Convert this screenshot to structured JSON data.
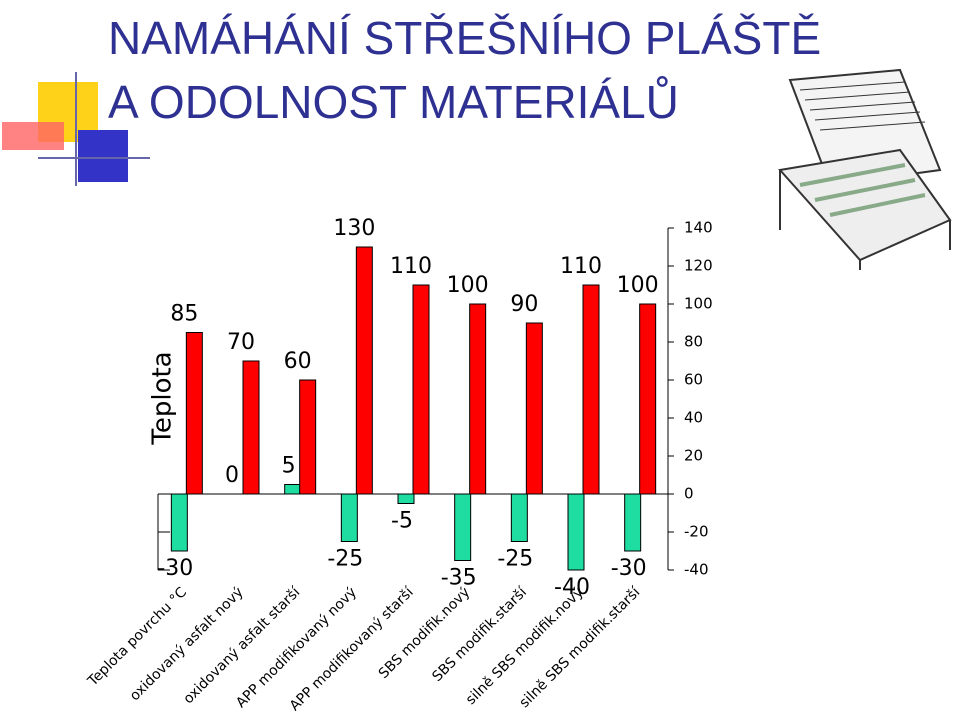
{
  "chart_data": {
    "type": "bar",
    "title": [
      "NAMÁHÁNÍ STŘEŠNÍHO PLÁŠTĚ",
      "A ODOLNOST MATERIÁLŮ"
    ],
    "ylabel": "Teplota",
    "categories": [
      "Teplota povrchu °C",
      "oxidovaný asfalt nový",
      "oxidovaný asfalt starší",
      "APP modifikovaný nový",
      "APP modifikovaný starší",
      "SBS modifik.nový",
      "SBS modifik.starší",
      "silně SBS modifik.nový",
      "silně SBS modifik.starší"
    ],
    "series": [
      {
        "color": "#1fdca0",
        "values": [
          -30,
          0,
          5,
          -25,
          -5,
          -35,
          -25,
          -40,
          -30
        ]
      },
      {
        "color": "#ff0000",
        "values": [
          85,
          70,
          60,
          130,
          110,
          100,
          90,
          110,
          100
        ]
      }
    ],
    "ylim": [
      -40,
      140
    ],
    "yticks": [
      -40,
      -20,
      0,
      20,
      40,
      60,
      80,
      100,
      120,
      140
    ]
  }
}
